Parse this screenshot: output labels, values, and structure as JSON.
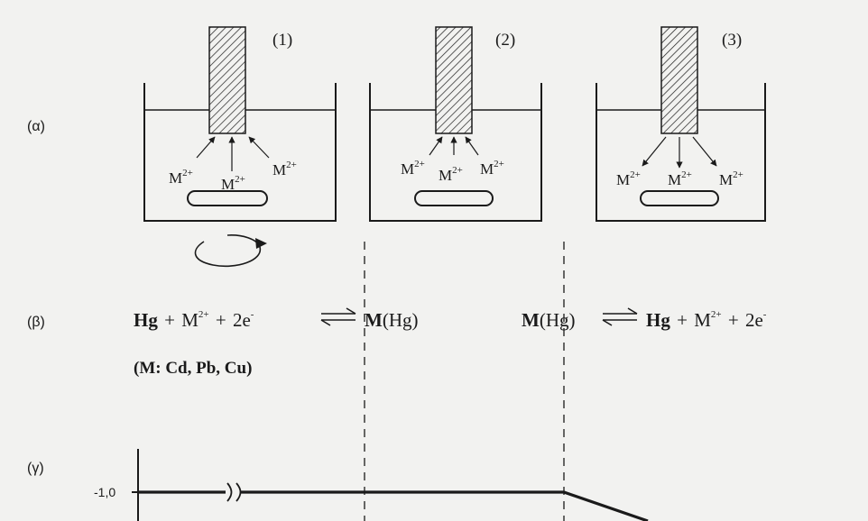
{
  "rows": {
    "a": "(α)",
    "b": "(β)",
    "g": "(γ)"
  },
  "cells": [
    {
      "number": "(1)",
      "ion": "M",
      "charge": "2+"
    },
    {
      "number": "(2)",
      "ion": "M",
      "charge": "2+"
    },
    {
      "number": "(3)",
      "ion": "M",
      "charge": "2+"
    }
  ],
  "equations": {
    "deposition": {
      "hg": "Hg",
      "plus1": "+",
      "ion": "M",
      "charge": "2+",
      "plus2": "+",
      "electrons": "2e",
      "minus": "-",
      "product_m": "M",
      "product_hg": "(Hg)"
    },
    "stripping": {
      "reactant_m": "M",
      "reactant_hg": "(Hg)",
      "hg": "Hg",
      "plus1": "+",
      "ion": "M",
      "charge": "2+",
      "plus2": "+",
      "electrons": "2e",
      "minus": "-"
    },
    "metals": "(M: Cd, Pb, Cu)"
  },
  "plot": {
    "tick_label": "-1,0"
  },
  "colors": {
    "ink": "#1a1a1a",
    "paper": "#f2f2f0"
  }
}
